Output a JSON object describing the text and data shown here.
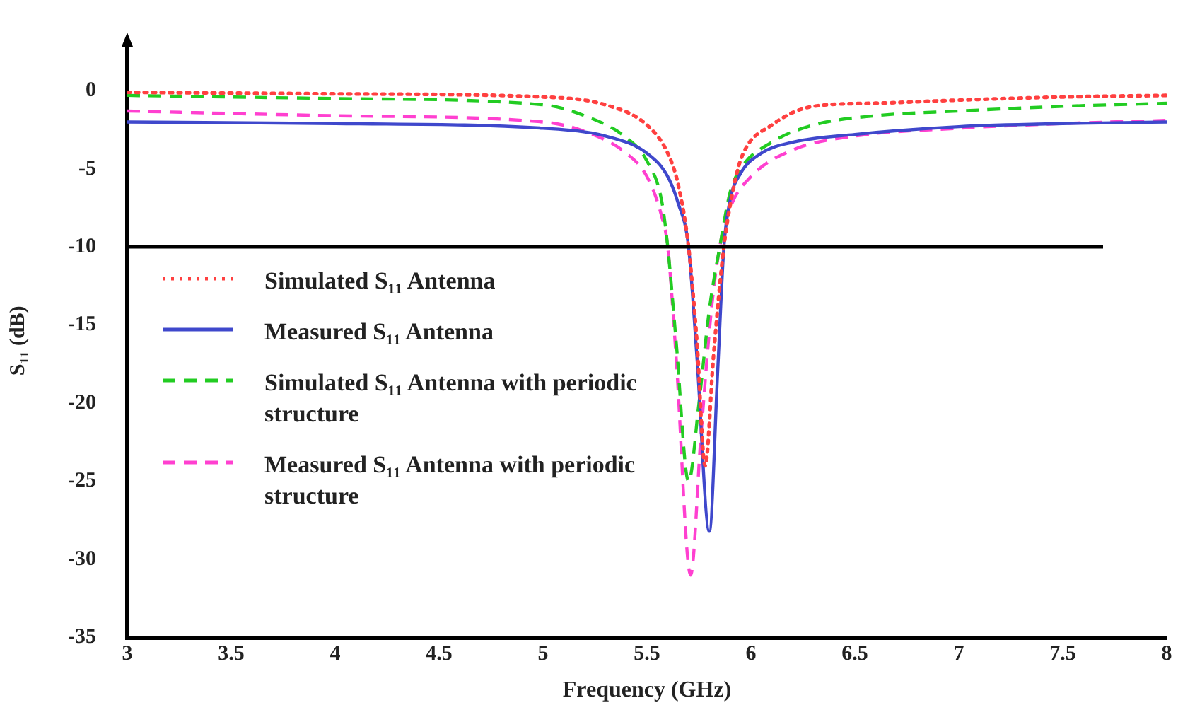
{
  "chart_data": {
    "type": "line",
    "xlabel": "Frequency (GHz)",
    "ylabel": "S₁₁ (dB)",
    "xlim": [
      3,
      8
    ],
    "xticks": [
      3,
      3.5,
      4,
      4.5,
      5,
      5.5,
      6,
      6.5,
      7,
      7.5,
      8
    ],
    "ylim": [
      -35,
      3
    ],
    "yticks": [
      0,
      -5,
      -10,
      -15,
      -20,
      -25,
      -30,
      -35
    ],
    "grid": false,
    "legend": "left",
    "marker": "none",
    "ref_lines": [
      {
        "axis": "y",
        "value": -10,
        "color": "#000000",
        "line_style": "solid"
      }
    ],
    "series": [
      {
        "name": "Simulated S₁₁ Antenna",
        "color": "#ff4040",
        "line_style": "dotted",
        "x": [
          3,
          4,
          5,
          5.3,
          5.5,
          5.6,
          5.65,
          5.7,
          5.74,
          5.78,
          5.82,
          5.87,
          5.92,
          5.96,
          6.1,
          6.3,
          6.6,
          7,
          7.5,
          8
        ],
        "values": [
          -0.1,
          -0.2,
          -0.4,
          -0.9,
          -2.2,
          -4,
          -6,
          -10,
          -16,
          -24,
          -17,
          -10,
          -6,
          -4.1,
          -2.2,
          -1.0,
          -0.8,
          -0.6,
          -0.4,
          -0.3
        ]
      },
      {
        "name": "Measured S₁₁ Antenna",
        "color": "#3f48cc",
        "line_style": "solid",
        "x": [
          3,
          4,
          5,
          5.3,
          5.5,
          5.6,
          5.65,
          5.7,
          5.74,
          5.8,
          5.84,
          5.87,
          5.9,
          5.95,
          6.05,
          6.2,
          6.5,
          7,
          7.5,
          8
        ],
        "values": [
          -2.0,
          -2.1,
          -2.4,
          -2.9,
          -4.0,
          -5.5,
          -7.2,
          -10,
          -17,
          -28.2,
          -18,
          -10,
          -7,
          -5.3,
          -4,
          -3.3,
          -2.8,
          -2.3,
          -2.1,
          -2.0
        ]
      },
      {
        "name": "Simulated S₁₁ Antenna with periodic structure",
        "color": "#22cc22",
        "line_style": "dashed",
        "x": [
          3,
          4,
          5,
          5.2,
          5.4,
          5.5,
          5.57,
          5.6,
          5.64,
          5.7,
          5.75,
          5.8,
          5.85,
          5.9,
          5.95,
          6.1,
          6.3,
          6.6,
          7,
          7.5,
          8
        ],
        "values": [
          -0.3,
          -0.5,
          -0.9,
          -1.6,
          -3,
          -4.5,
          -7,
          -10,
          -16,
          -25,
          -20,
          -14,
          -10,
          -6.5,
          -5,
          -3.3,
          -2.2,
          -1.6,
          -1.3,
          -1.0,
          -0.8
        ]
      },
      {
        "name": "Measured S₁₁ Antenna with periodic structure",
        "color": "#ff40d0",
        "line_style": "dashed",
        "x": [
          3,
          4,
          5,
          5.2,
          5.4,
          5.5,
          5.57,
          5.6,
          5.64,
          5.71,
          5.76,
          5.81,
          5.85,
          5.9,
          6.0,
          6.2,
          6.5,
          7,
          7.5,
          8
        ],
        "values": [
          -1.3,
          -1.6,
          -2.0,
          -2.6,
          -4.0,
          -5.5,
          -8,
          -10,
          -17,
          -31,
          -22,
          -14,
          -10,
          -7.5,
          -5.5,
          -3.8,
          -2.9,
          -2.4,
          -2.1,
          -1.9
        ]
      }
    ]
  }
}
